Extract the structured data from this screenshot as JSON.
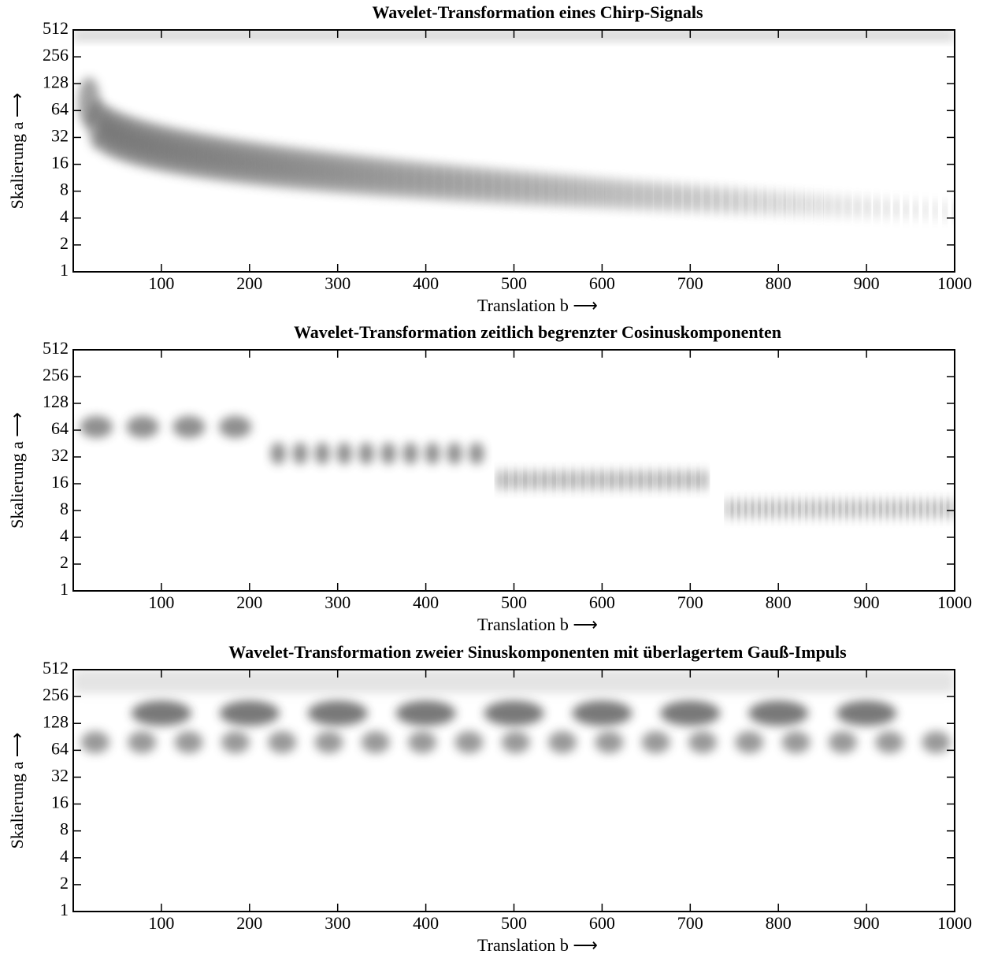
{
  "chart_data": [
    {
      "type": "heatmap",
      "title": "Wavelet-Transformation eines Chirp-Signals",
      "xlabel": "Translation b ⟶",
      "ylabel": "Skalierung a ⟶",
      "xlim": [
        0,
        1000
      ],
      "xticks": [
        100,
        200,
        300,
        400,
        500,
        600,
        700,
        800,
        900,
        1000
      ],
      "ylim": [
        1,
        512
      ],
      "yticks": [
        1,
        2,
        4,
        8,
        16,
        32,
        64,
        128,
        256,
        512
      ],
      "yscale": "log2",
      "colormap": "gray"
    },
    {
      "type": "heatmap",
      "title": "Wavelet-Transformation zeitlich begrenzter Cosinuskomponenten",
      "xlabel": "Translation b ⟶",
      "ylabel": "Skalierung a ⟶",
      "xlim": [
        0,
        1000
      ],
      "xticks": [
        100,
        200,
        300,
        400,
        500,
        600,
        700,
        800,
        900,
        1000
      ],
      "ylim": [
        1,
        512
      ],
      "yticks": [
        1,
        2,
        4,
        8,
        16,
        32,
        64,
        128,
        256,
        512
      ],
      "yscale": "log2",
      "colormap": "gray"
    },
    {
      "type": "heatmap",
      "title": "Wavelet-Transformation zweier Sinuskomponenten mit überlagertem Gauß-Impuls",
      "xlabel": "Translation b ⟶",
      "ylabel": "Skalierung a ⟶",
      "xlim": [
        0,
        1000
      ],
      "xticks": [
        100,
        200,
        300,
        400,
        500,
        600,
        700,
        800,
        900,
        1000
      ],
      "ylim": [
        1,
        512
      ],
      "yticks": [
        1,
        2,
        4,
        8,
        16,
        32,
        64,
        128,
        256,
        512
      ],
      "yscale": "log2",
      "colormap": "gray"
    }
  ]
}
